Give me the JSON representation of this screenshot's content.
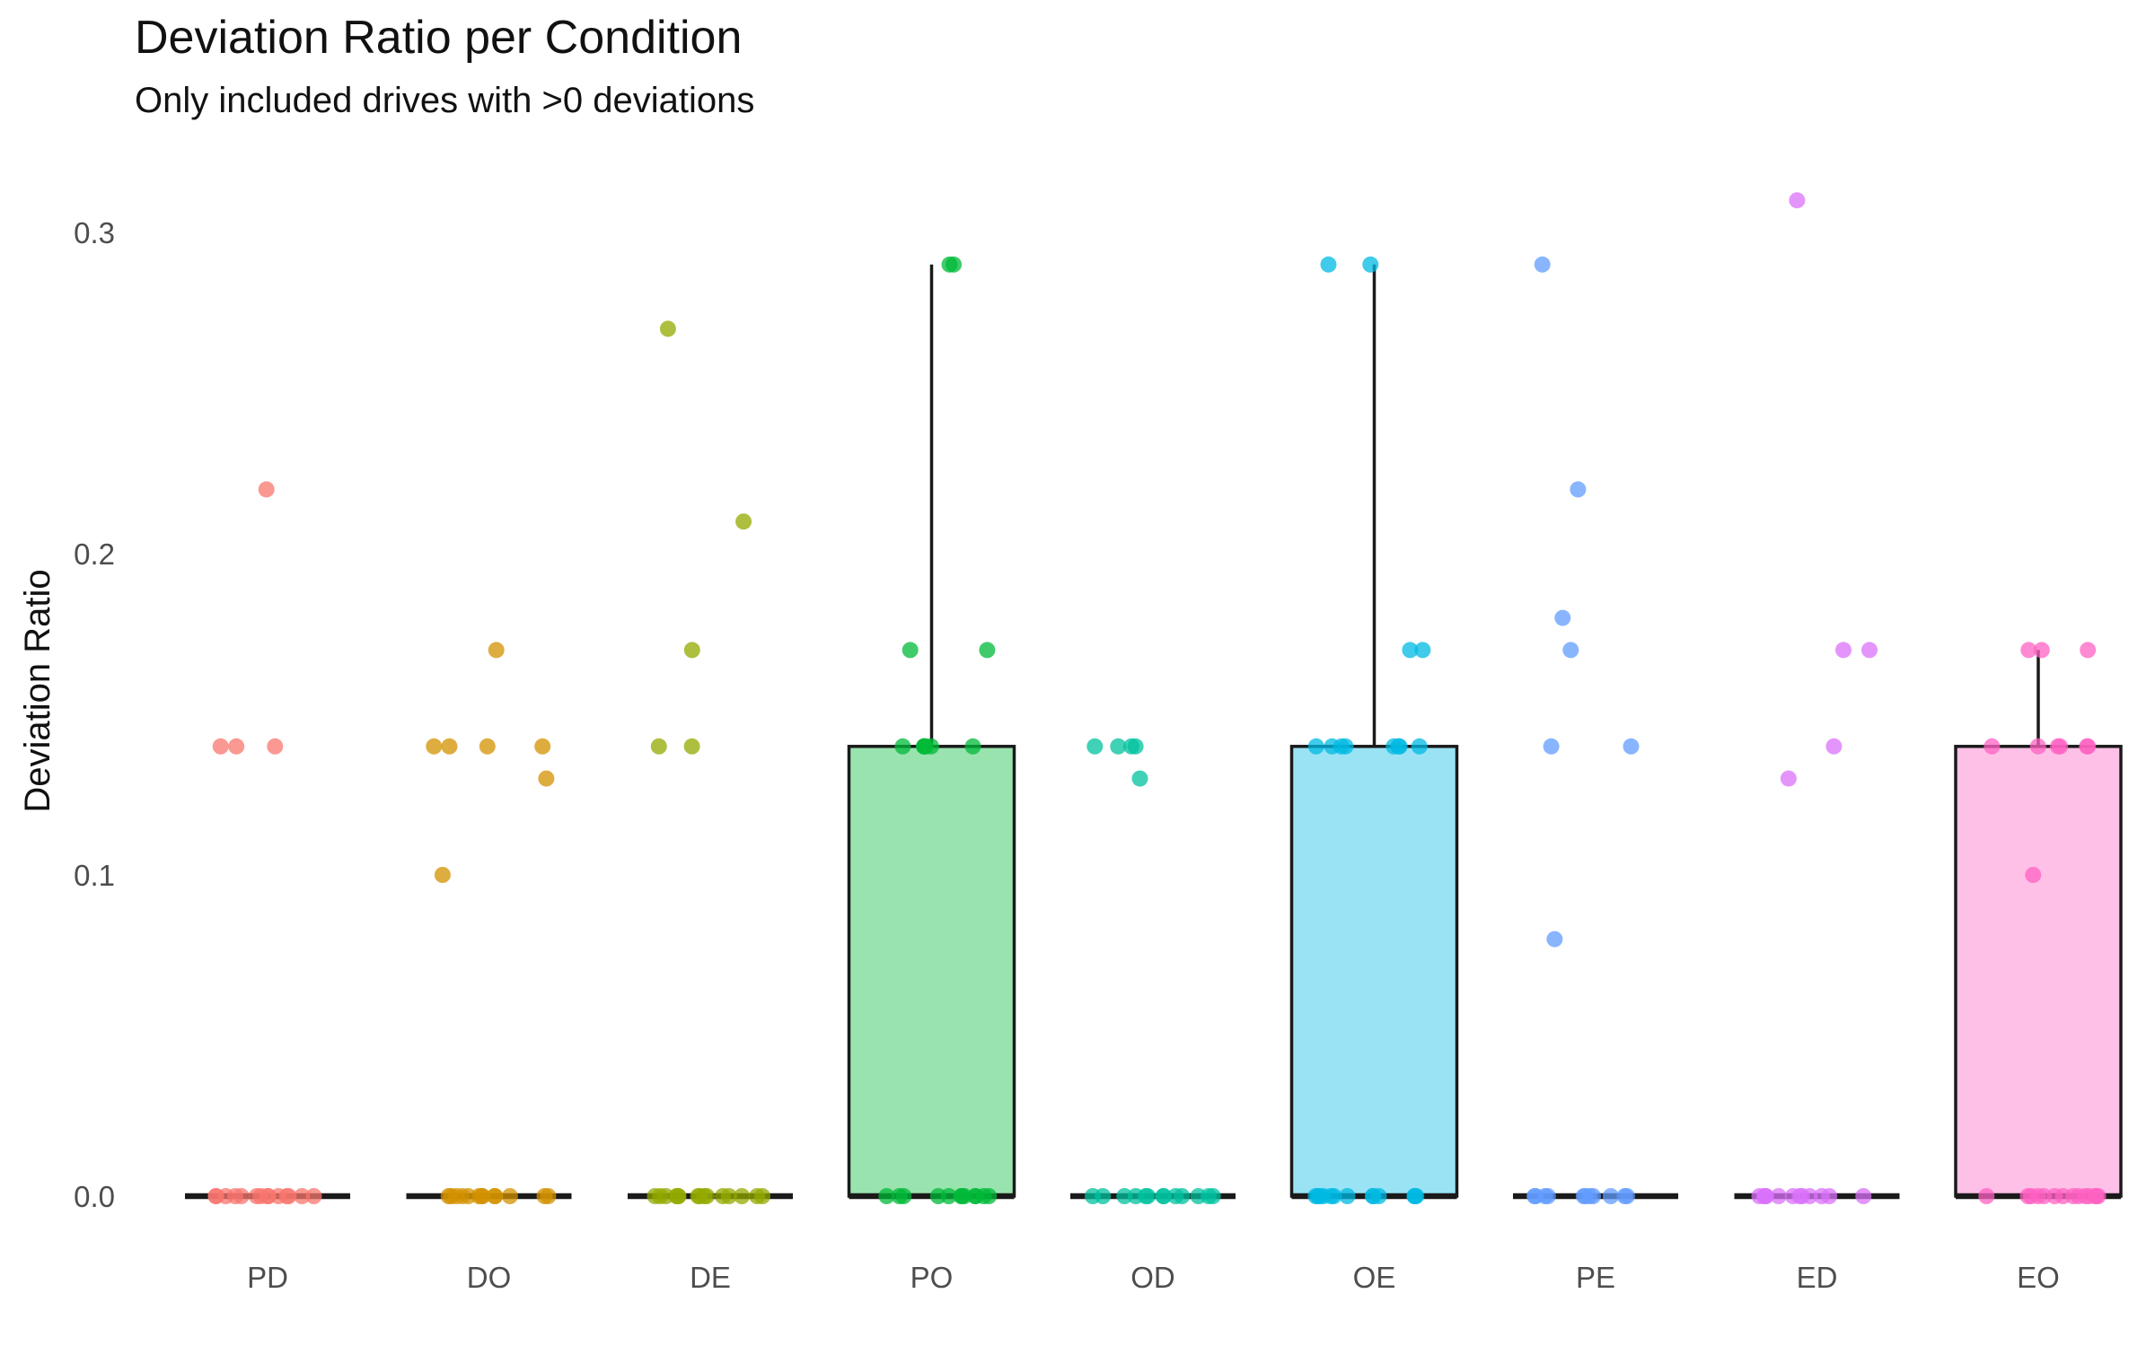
{
  "chart_data": {
    "type": "box",
    "title": "Deviation Ratio per Condition",
    "subtitle": "Only included drives with >0 deviations",
    "xlabel": "",
    "ylabel": "Deviation Ratio",
    "ylim": [
      0,
      0.31
    ],
    "yticks": [
      "0.0",
      "0.1",
      "0.2",
      "0.3"
    ],
    "yticks_values": [
      0,
      0.1,
      0.2,
      0.3
    ],
    "grid": false,
    "legend": "none",
    "categories": [
      "PD",
      "DO",
      "DE",
      "PO",
      "OD",
      "OE",
      "PE",
      "ED",
      "EO"
    ],
    "colors": [
      "#F8766D",
      "#D39200",
      "#93AA00",
      "#00BA38",
      "#00C19F",
      "#00B9E3",
      "#619CFF",
      "#DB72FB",
      "#FF61C3"
    ],
    "boxes": [
      {
        "name": "PD",
        "q1": 0,
        "median": 0,
        "q3": 0,
        "whisker_low": 0,
        "whisker_high": 0
      },
      {
        "name": "DO",
        "q1": 0,
        "median": 0,
        "q3": 0,
        "whisker_low": 0,
        "whisker_high": 0
      },
      {
        "name": "DE",
        "q1": 0,
        "median": 0,
        "q3": 0,
        "whisker_low": 0,
        "whisker_high": 0
      },
      {
        "name": "PO",
        "q1": 0,
        "median": 0,
        "q3": 0.14,
        "whisker_low": 0,
        "whisker_high": 0.29
      },
      {
        "name": "OD",
        "q1": 0,
        "median": 0,
        "q3": 0,
        "whisker_low": 0,
        "whisker_high": 0
      },
      {
        "name": "OE",
        "q1": 0,
        "median": 0,
        "q3": 0.14,
        "whisker_low": 0,
        "whisker_high": 0.29
      },
      {
        "name": "PE",
        "q1": 0,
        "median": 0,
        "q3": 0,
        "whisker_low": 0,
        "whisker_high": 0
      },
      {
        "name": "ED",
        "q1": 0,
        "median": 0,
        "q3": 0,
        "whisker_low": 0,
        "whisker_high": 0
      },
      {
        "name": "EO",
        "q1": 0,
        "median": 0,
        "q3": 0.14,
        "whisker_low": 0,
        "whisker_high": 0.17
      }
    ],
    "points": [
      {
        "name": "PD",
        "values": [
          0.22,
          0.14,
          0.14,
          0.14,
          0,
          0,
          0,
          0,
          0,
          0,
          0,
          0,
          0,
          0,
          0,
          0,
          0,
          0
        ]
      },
      {
        "name": "DO",
        "values": [
          0.17,
          0.14,
          0.14,
          0.14,
          0.14,
          0.13,
          0.1,
          0,
          0,
          0,
          0,
          0,
          0,
          0,
          0,
          0,
          0,
          0,
          0,
          0
        ]
      },
      {
        "name": "DE",
        "values": [
          0.27,
          0.21,
          0.17,
          0.14,
          0.14,
          0,
          0,
          0,
          0,
          0,
          0,
          0,
          0,
          0,
          0,
          0,
          0,
          0,
          0,
          0
        ]
      },
      {
        "name": "PO",
        "values": [
          0.29,
          0.29,
          0.17,
          0.17,
          0.14,
          0.14,
          0.14,
          0.14,
          0.14,
          0.14,
          0.14,
          0,
          0,
          0,
          0,
          0,
          0,
          0,
          0,
          0,
          0,
          0,
          0
        ]
      },
      {
        "name": "OD",
        "values": [
          0.14,
          0.14,
          0.14,
          0.14,
          0.13,
          0,
          0,
          0,
          0,
          0,
          0,
          0,
          0,
          0,
          0,
          0,
          0,
          0
        ]
      },
      {
        "name": "OE",
        "values": [
          0.29,
          0.29,
          0.17,
          0.17,
          0.14,
          0.14,
          0.14,
          0.14,
          0.14,
          0.14,
          0.14,
          0.14,
          0,
          0,
          0,
          0,
          0,
          0,
          0,
          0,
          0,
          0,
          0,
          0,
          0
        ]
      },
      {
        "name": "PE",
        "values": [
          0.29,
          0.22,
          0.18,
          0.17,
          0.14,
          0.14,
          0.08,
          0,
          0,
          0,
          0,
          0,
          0,
          0,
          0,
          0,
          0,
          0
        ]
      },
      {
        "name": "ED",
        "values": [
          0.31,
          0.17,
          0.17,
          0.14,
          0.13,
          0,
          0,
          0,
          0,
          0,
          0,
          0,
          0,
          0,
          0,
          0,
          0
        ]
      },
      {
        "name": "EO",
        "values": [
          0.17,
          0.17,
          0.17,
          0.14,
          0.14,
          0.14,
          0.14,
          0.14,
          0.14,
          0.1,
          0,
          0,
          0,
          0,
          0,
          0,
          0,
          0,
          0,
          0,
          0,
          0,
          0,
          0
        ]
      }
    ]
  }
}
